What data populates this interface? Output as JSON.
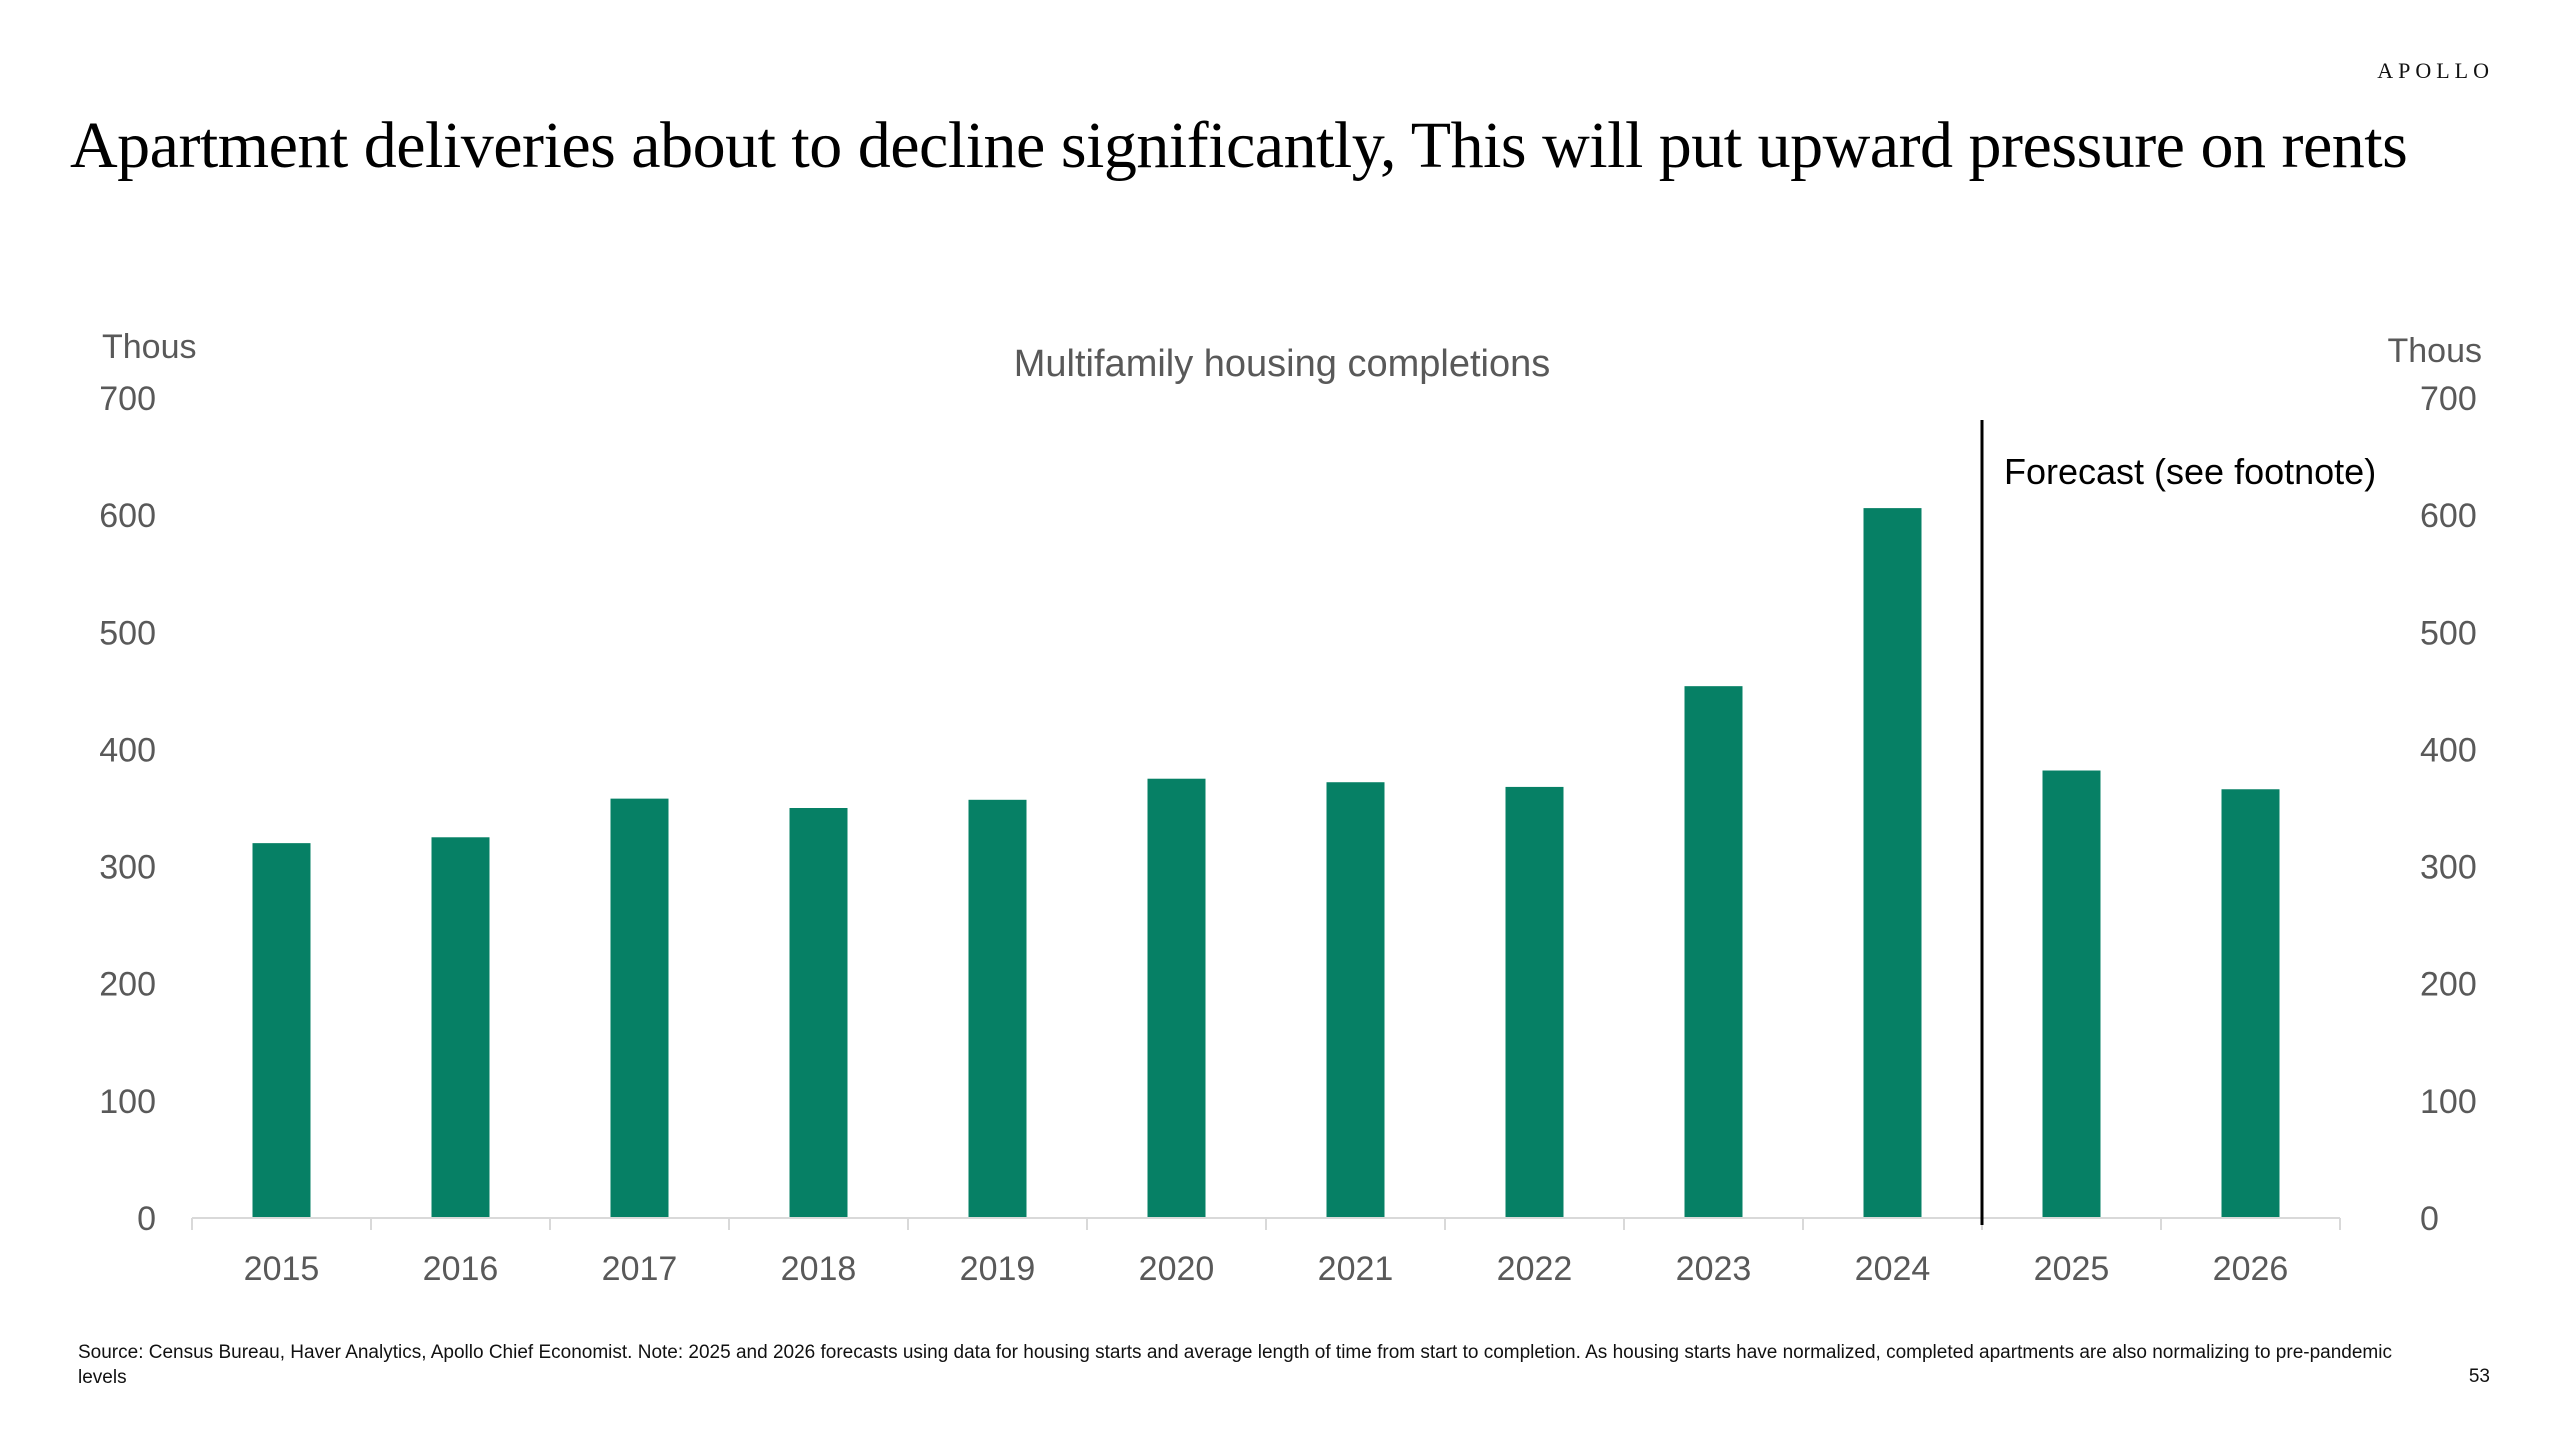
{
  "brand": "APOLLO",
  "headline": "Apartment deliveries about to decline significantly, This will put upward pressure on rents",
  "footnote": "Source: Census Bureau, Haver Analytics, Apollo Chief Economist. Note: 2025 and 2026 forecasts using data for housing starts and average length of time from start to completion. As housing starts have normalized, completed apartments are also normalizing to pre-pandemic levels",
  "page_number": "53",
  "chart_data": {
    "type": "bar",
    "title": "Multifamily housing completions",
    "y_unit_left": "Thous",
    "y_unit_right": "Thous",
    "categories": [
      "2015",
      "2016",
      "2017",
      "2018",
      "2019",
      "2020",
      "2021",
      "2022",
      "2023",
      "2024",
      "2025",
      "2026"
    ],
    "values": [
      320,
      325,
      358,
      350,
      357,
      375,
      372,
      368,
      454,
      606,
      382,
      366
    ],
    "ylim": [
      0,
      700
    ],
    "yticks": [
      0,
      100,
      200,
      300,
      400,
      500,
      600,
      700
    ],
    "forecast_divider_after": "2024",
    "forecast_label": "Forecast (see footnote)",
    "bar_color": "#068065",
    "grid": false,
    "legend": "none"
  }
}
